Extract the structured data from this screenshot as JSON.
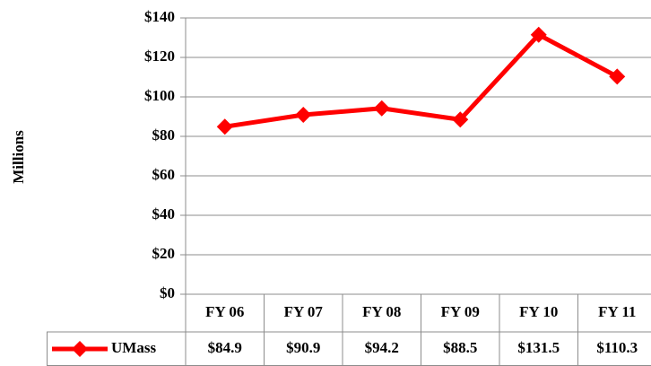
{
  "chart_data": {
    "type": "line",
    "y_label": "Millions",
    "categories": [
      "FY 06",
      "FY 07",
      "FY 08",
      "FY 09",
      "FY 10",
      "FY 11"
    ],
    "series": [
      {
        "name": "UMass",
        "color": "#ff0000",
        "values": [
          84.9,
          90.9,
          94.2,
          88.5,
          131.5,
          110.3
        ],
        "value_labels": [
          "$84.9",
          "$90.9",
          "$94.2",
          "$88.5",
          "$131.5",
          "$110.3"
        ]
      }
    ],
    "ylim": [
      0,
      140
    ],
    "yticks": [
      {
        "value": 0,
        "label": "$0"
      },
      {
        "value": 20,
        "label": "$20"
      },
      {
        "value": 40,
        "label": "$40"
      },
      {
        "value": 60,
        "label": "$60"
      },
      {
        "value": 80,
        "label": "$80"
      },
      {
        "value": 100,
        "label": "$100"
      },
      {
        "value": 120,
        "label": "$120"
      },
      {
        "value": 140,
        "label": "$140"
      }
    ],
    "grid": true
  }
}
